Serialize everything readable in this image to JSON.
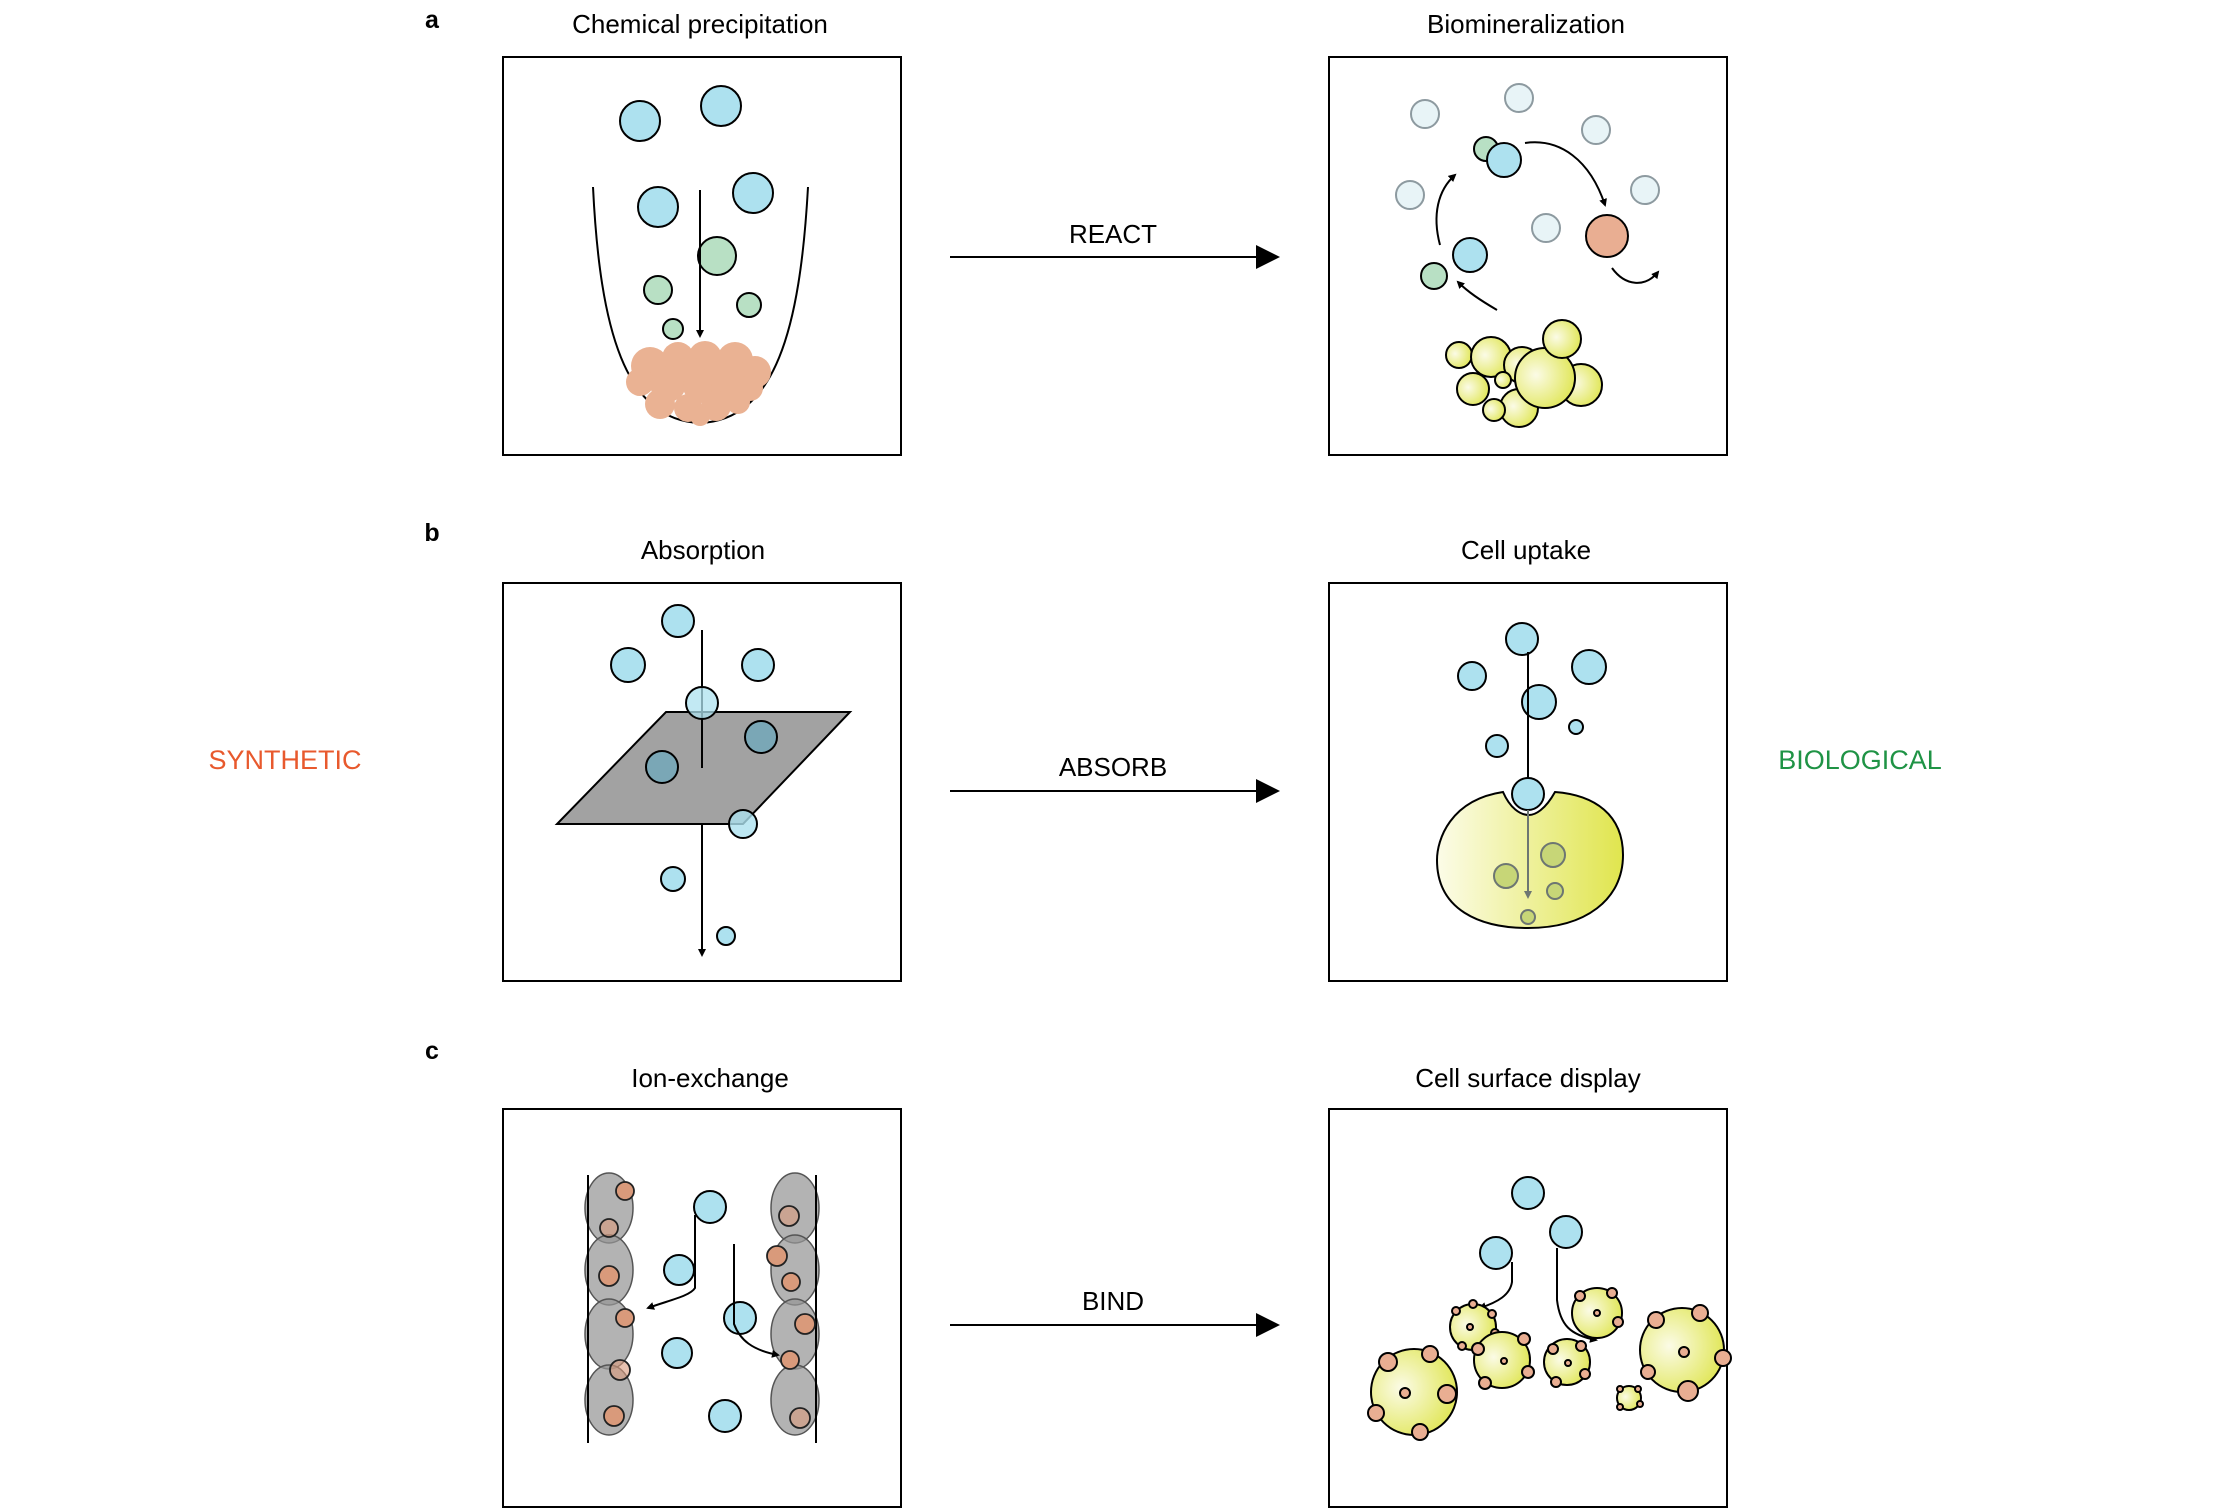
{
  "figure": {
    "panels": [
      {
        "letter": "a",
        "synthetic_title": "Chemical precipitation",
        "biological_title": "Biomineralization",
        "action": "REACT"
      },
      {
        "letter": "b",
        "synthetic_title": "Absorption",
        "biological_title": "Cell uptake",
        "action": "ABSORB"
      },
      {
        "letter": "c",
        "synthetic_title": "Ion-exchange",
        "biological_title": "Cell surface display",
        "action": "BIND"
      }
    ],
    "left_label": "SYNTHETIC",
    "right_label": "BIOLOGICAL"
  },
  "colors": {
    "synthetic": "#e8592d",
    "biological": "#1f9345",
    "metal_ion": "#ade1ef",
    "ligand": "#b8e0c4",
    "precipitate": "#eab293",
    "cell": "#e6ea6a"
  }
}
